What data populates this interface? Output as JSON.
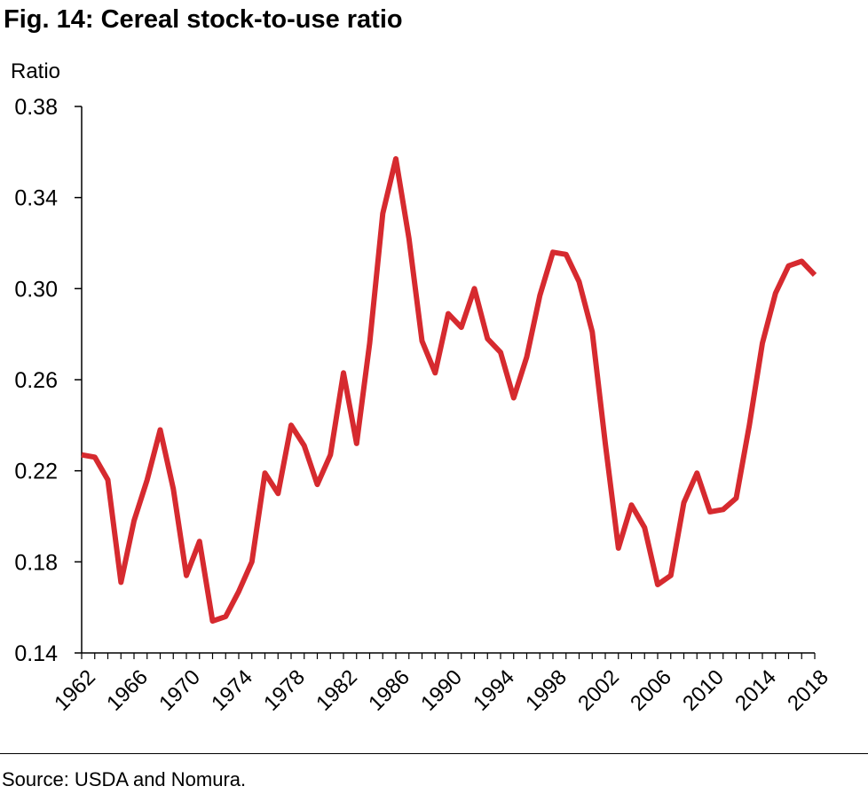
{
  "header": {
    "title": "Fig. 14: Cereal stock-to-use ratio"
  },
  "footer": {
    "source": "Source: USDA and Nomura."
  },
  "colors": {
    "line": "#d62a2f",
    "axis": "#000000"
  },
  "chart_data": {
    "type": "line",
    "title": "Fig. 14: Cereal stock-to-use ratio",
    "ylabel": "Ratio",
    "xlabel": "",
    "ylim": [
      0.14,
      0.38
    ],
    "yticks": [
      "0.14",
      "0.18",
      "0.22",
      "0.26",
      "0.30",
      "0.34",
      "0.38"
    ],
    "xticks": [
      "1962",
      "1966",
      "1970",
      "1974",
      "1978",
      "1982",
      "1986",
      "1990",
      "1994",
      "1998",
      "2002",
      "2006",
      "2010",
      "2014",
      "2018"
    ],
    "xlim": [
      1962,
      2018
    ],
    "grid": false,
    "legend": "none",
    "series": [
      {
        "x": [
          1962,
          1963,
          1964,
          1965,
          1966,
          1967,
          1968,
          1969,
          1970,
          1971,
          1972,
          1973,
          1974,
          1975,
          1976,
          1977,
          1978,
          1979,
          1980,
          1981,
          1982,
          1983,
          1984,
          1985,
          1986,
          1987,
          1988,
          1989,
          1990,
          1991,
          1992,
          1993,
          1994,
          1995,
          1996,
          1997,
          1998,
          1999,
          2000,
          2001,
          2002,
          2003,
          2004,
          2005,
          2006,
          2007,
          2008,
          2009,
          2010,
          2011,
          2012,
          2013,
          2014,
          2015,
          2016,
          2017,
          2018
        ],
        "values": [
          0.227,
          0.226,
          0.216,
          0.171,
          0.198,
          0.216,
          0.238,
          0.212,
          0.174,
          0.189,
          0.154,
          0.156,
          0.167,
          0.18,
          0.219,
          0.21,
          0.24,
          0.231,
          0.214,
          0.227,
          0.263,
          0.232,
          0.276,
          0.333,
          0.357,
          0.322,
          0.277,
          0.263,
          0.289,
          0.283,
          0.3,
          0.278,
          0.272,
          0.252,
          0.27,
          0.297,
          0.316,
          0.315,
          0.303,
          0.281,
          0.232,
          0.186,
          0.205,
          0.195,
          0.17,
          0.174,
          0.206,
          0.219,
          0.202,
          0.203,
          0.208,
          0.24,
          0.276,
          0.298,
          0.31,
          0.312,
          0.306
        ]
      }
    ]
  }
}
